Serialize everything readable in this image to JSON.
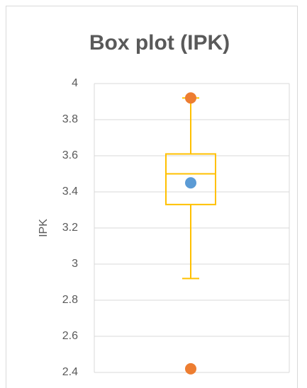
{
  "chart_data": {
    "type": "box",
    "title": "Box plot (IPK)",
    "ylabel": "IPK",
    "ylim": [
      2.4,
      4
    ],
    "yticks": [
      2.4,
      2.6,
      2.8,
      3,
      3.2,
      3.4,
      3.6,
      3.8,
      4
    ],
    "grid": true,
    "box": {
      "whisker_low": 2.92,
      "q1": 3.33,
      "median": 3.5,
      "q3": 3.61,
      "whisker_high": 3.92,
      "mean": 3.45,
      "color": "#ffc000",
      "mean_color": "#5b9bd5"
    },
    "points": {
      "values": [
        3.92,
        2.42
      ],
      "color": "#ed7d31"
    }
  }
}
